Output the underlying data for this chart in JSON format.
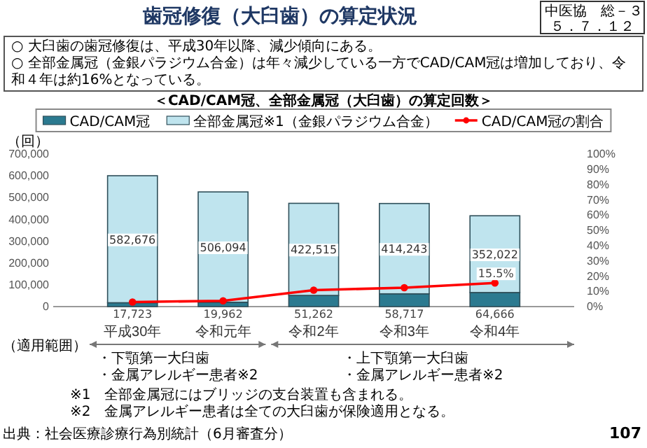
{
  "chart_data": {
    "type": "bar",
    "title": "歯冠修復（大臼歯）の算定状況",
    "subtitle": "＜CAD/CAM冠、全部金属冠（大臼歯）の算定回数＞",
    "ylabel": "（回）",
    "categories": [
      "平成30年",
      "令和元年",
      "令和2年",
      "令和3年",
      "令和4年"
    ],
    "stacked": true,
    "series": [
      {
        "name": "CAD/CAM冠",
        "color": "#2b7a90",
        "values": [
          17723,
          19962,
          51262,
          58717,
          64666
        ],
        "value_labels": [
          "17,723",
          "19,962",
          "51,262",
          "58,717",
          "64,666"
        ]
      },
      {
        "name": "全部金属冠※1（金銀パラジウム合金）",
        "color": "#bfe4ee",
        "values": [
          582676,
          506094,
          422515,
          414243,
          352022
        ],
        "value_labels": [
          "582,676",
          "506,094",
          "422,515",
          "414,243",
          "352,022"
        ]
      },
      {
        "name": "CAD/CAM冠の割合",
        "type": "line",
        "axis": "y2",
        "color": "#ff0000",
        "values": [
          3,
          3.8,
          10.8,
          12.4,
          15.5
        ],
        "value_labels": [
          null,
          null,
          null,
          null,
          "15.5%"
        ]
      }
    ],
    "ylim": [
      0,
      700000
    ],
    "yticks": [
      0,
      {
        "value": 100000,
        "label": "100,000"
      },
      {
        "value": 200000,
        "label": "200,000"
      },
      {
        "value": 300000,
        "label": "300,000"
      },
      {
        "value": 400000,
        "label": "400,000"
      },
      {
        "value": 500000,
        "label": "500,000"
      },
      {
        "value": 600000,
        "label": "600,000"
      },
      {
        "value": 700000,
        "label": "700,000"
      }
    ],
    "y2lim": [
      0,
      100
    ],
    "y2ticks": [
      {
        "value": 0,
        "label": "0%"
      },
      {
        "value": 10,
        "label": "10%"
      },
      {
        "value": 20,
        "label": "20%"
      },
      {
        "value": 30,
        "label": "30%"
      },
      {
        "value": 40,
        "label": "40%"
      },
      {
        "value": 50,
        "label": "50%"
      },
      {
        "value": 60,
        "label": "60%"
      },
      {
        "value": 70,
        "label": "70%"
      },
      {
        "value": 80,
        "label": "80%"
      },
      {
        "value": 90,
        "label": "90%"
      },
      {
        "value": 100,
        "label": "100%"
      }
    ],
    "legend": "top",
    "marker": "circle",
    "line_style": "solid",
    "annotations": [
      "○ 大臼歯の歯冠修復は、平成30年以降、減少傾向にある。",
      "○ 全部金属冠（金銀パラジウム合金）は年々減少している一方でCAD/CAM冠は増加しており、令和４年は約16%となっている。",
      "（適用範囲）",
      "・下顎第一大臼歯",
      "・金属アレルギー患者※2",
      "・上下顎第一大臼歯",
      "・金属アレルギー患者※2",
      "※1　全部金属冠にはブリッジの支台装置も含まれる。",
      "※2　金属アレルギー患者は全ての大臼歯が保険適用となる。",
      "出典：社会医療診療行為別統計（6月審査分）",
      "中医協　総－３",
      "５．７．１２",
      "107"
    ]
  }
}
